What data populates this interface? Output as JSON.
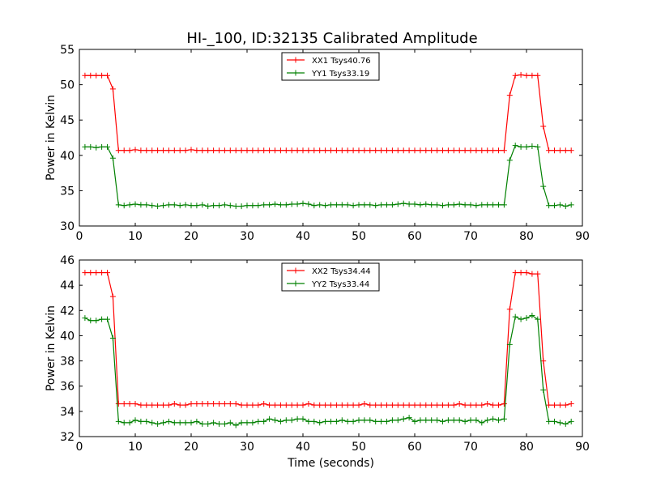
{
  "title": "HI-_100, ID:32135 Calibrated Amplitude",
  "chart_data": [
    {
      "type": "line",
      "title": "HI-_100, ID:32135 Calibrated Amplitude",
      "xlabel": "",
      "ylabel": "Power in Kelvin",
      "xlim": [
        0,
        90
      ],
      "ylim": [
        30,
        55
      ],
      "xticks": [
        "0",
        "10",
        "20",
        "30",
        "40",
        "50",
        "60",
        "70",
        "80",
        "90"
      ],
      "yticks": [
        "30",
        "35",
        "40",
        "45",
        "50",
        "55"
      ],
      "legend": "top-center",
      "grid": false,
      "x": [
        1,
        2,
        3,
        4,
        5,
        6,
        7,
        8,
        9,
        10,
        11,
        12,
        13,
        14,
        15,
        16,
        17,
        18,
        19,
        20,
        21,
        22,
        23,
        24,
        25,
        26,
        27,
        28,
        29,
        30,
        31,
        32,
        33,
        34,
        35,
        36,
        37,
        38,
        39,
        40,
        41,
        42,
        43,
        44,
        45,
        46,
        47,
        48,
        49,
        50,
        51,
        52,
        53,
        54,
        55,
        56,
        57,
        58,
        59,
        60,
        61,
        62,
        63,
        64,
        65,
        66,
        67,
        68,
        69,
        70,
        71,
        72,
        73,
        74,
        75,
        76,
        77,
        78,
        79,
        80,
        81,
        82,
        83,
        84,
        85,
        86,
        87,
        88
      ],
      "series": [
        {
          "name": "XX1 Tsys40.76",
          "color": "#ff0000",
          "values": [
            51.3,
            51.3,
            51.3,
            51.3,
            51.3,
            49.4,
            40.7,
            40.7,
            40.7,
            40.8,
            40.7,
            40.7,
            40.7,
            40.7,
            40.7,
            40.7,
            40.7,
            40.7,
            40.7,
            40.8,
            40.7,
            40.7,
            40.7,
            40.7,
            40.7,
            40.7,
            40.7,
            40.7,
            40.7,
            40.7,
            40.7,
            40.7,
            40.7,
            40.7,
            40.7,
            40.7,
            40.7,
            40.7,
            40.7,
            40.7,
            40.7,
            40.7,
            40.7,
            40.7,
            40.7,
            40.7,
            40.7,
            40.7,
            40.7,
            40.7,
            40.7,
            40.7,
            40.7,
            40.7,
            40.7,
            40.7,
            40.7,
            40.7,
            40.7,
            40.7,
            40.7,
            40.7,
            40.7,
            40.7,
            40.7,
            40.7,
            40.7,
            40.7,
            40.7,
            40.7,
            40.7,
            40.7,
            40.7,
            40.7,
            40.7,
            40.7,
            48.5,
            51.3,
            51.4,
            51.3,
            51.3,
            51.3,
            44.1,
            40.7,
            40.7,
            40.7,
            40.7,
            40.7
          ]
        },
        {
          "name": "YY1 Tsys33.19",
          "color": "#008000",
          "values": [
            41.2,
            41.2,
            41.1,
            41.2,
            41.2,
            39.6,
            33.0,
            32.9,
            33.0,
            33.1,
            33.0,
            33.0,
            32.9,
            32.8,
            32.9,
            33.0,
            33.0,
            32.9,
            33.0,
            32.9,
            32.9,
            33.0,
            32.8,
            32.9,
            32.9,
            33.0,
            32.9,
            32.8,
            32.8,
            32.9,
            32.9,
            32.9,
            33.0,
            33.0,
            33.1,
            33.0,
            33.0,
            33.1,
            33.1,
            33.2,
            33.1,
            32.9,
            33.0,
            32.9,
            33.0,
            33.0,
            33.0,
            33.0,
            32.9,
            33.0,
            33.0,
            33.0,
            32.9,
            33.0,
            33.0,
            33.0,
            33.1,
            33.2,
            33.1,
            33.1,
            33.0,
            33.1,
            33.0,
            33.0,
            32.9,
            33.0,
            33.0,
            33.1,
            33.0,
            33.0,
            32.9,
            33.0,
            33.0,
            33.0,
            33.0,
            33.0,
            39.3,
            41.4,
            41.2,
            41.2,
            41.3,
            41.2,
            35.6,
            32.9,
            32.9,
            33.0,
            32.8,
            33.0
          ]
        }
      ]
    },
    {
      "type": "line",
      "title": "",
      "xlabel": "Time (seconds)",
      "ylabel": "Power in Kelvin",
      "xlim": [
        0,
        90
      ],
      "ylim": [
        32,
        46
      ],
      "xticks": [
        "0",
        "10",
        "20",
        "30",
        "40",
        "50",
        "60",
        "70",
        "80",
        "90"
      ],
      "yticks": [
        "32",
        "34",
        "36",
        "38",
        "40",
        "42",
        "44",
        "46"
      ],
      "legend": "top-center",
      "grid": false,
      "x": [
        1,
        2,
        3,
        4,
        5,
        6,
        7,
        8,
        9,
        10,
        11,
        12,
        13,
        14,
        15,
        16,
        17,
        18,
        19,
        20,
        21,
        22,
        23,
        24,
        25,
        26,
        27,
        28,
        29,
        30,
        31,
        32,
        33,
        34,
        35,
        36,
        37,
        38,
        39,
        40,
        41,
        42,
        43,
        44,
        45,
        46,
        47,
        48,
        49,
        50,
        51,
        52,
        53,
        54,
        55,
        56,
        57,
        58,
        59,
        60,
        61,
        62,
        63,
        64,
        65,
        66,
        67,
        68,
        69,
        70,
        71,
        72,
        73,
        74,
        75,
        76,
        77,
        78,
        79,
        80,
        81,
        82,
        83,
        84,
        85,
        86,
        87,
        88
      ],
      "series": [
        {
          "name": "XX2 Tsys34.44",
          "color": "#ff0000",
          "values": [
            45.0,
            45.0,
            45.0,
            45.0,
            45.0,
            43.1,
            34.6,
            34.6,
            34.6,
            34.6,
            34.5,
            34.5,
            34.5,
            34.5,
            34.5,
            34.5,
            34.6,
            34.5,
            34.5,
            34.6,
            34.6,
            34.6,
            34.6,
            34.6,
            34.6,
            34.6,
            34.6,
            34.6,
            34.5,
            34.5,
            34.5,
            34.5,
            34.6,
            34.5,
            34.5,
            34.5,
            34.5,
            34.5,
            34.5,
            34.5,
            34.6,
            34.5,
            34.5,
            34.5,
            34.5,
            34.5,
            34.5,
            34.5,
            34.5,
            34.5,
            34.6,
            34.5,
            34.5,
            34.5,
            34.5,
            34.5,
            34.5,
            34.5,
            34.5,
            34.5,
            34.5,
            34.5,
            34.5,
            34.5,
            34.5,
            34.5,
            34.5,
            34.6,
            34.5,
            34.5,
            34.5,
            34.5,
            34.6,
            34.5,
            34.5,
            34.6,
            42.1,
            45.0,
            45.0,
            45.0,
            44.9,
            44.9,
            38.0,
            34.5,
            34.5,
            34.5,
            34.5,
            34.6
          ]
        },
        {
          "name": "YY2 Tsys33.44",
          "color": "#008000",
          "values": [
            41.4,
            41.2,
            41.2,
            41.3,
            41.3,
            39.8,
            33.2,
            33.1,
            33.1,
            33.3,
            33.2,
            33.2,
            33.1,
            33.0,
            33.1,
            33.2,
            33.1,
            33.1,
            33.1,
            33.1,
            33.2,
            33.0,
            33.0,
            33.1,
            33.0,
            33.0,
            33.1,
            32.9,
            33.1,
            33.1,
            33.1,
            33.2,
            33.2,
            33.4,
            33.3,
            33.2,
            33.3,
            33.3,
            33.4,
            33.4,
            33.2,
            33.2,
            33.1,
            33.2,
            33.2,
            33.2,
            33.3,
            33.2,
            33.2,
            33.3,
            33.3,
            33.3,
            33.2,
            33.2,
            33.2,
            33.3,
            33.3,
            33.4,
            33.5,
            33.2,
            33.3,
            33.3,
            33.3,
            33.3,
            33.2,
            33.3,
            33.3,
            33.3,
            33.2,
            33.3,
            33.3,
            33.1,
            33.3,
            33.4,
            33.3,
            33.4,
            39.3,
            41.5,
            41.3,
            41.4,
            41.6,
            41.3,
            35.7,
            33.2,
            33.2,
            33.1,
            33.0,
            33.2
          ]
        }
      ]
    }
  ]
}
